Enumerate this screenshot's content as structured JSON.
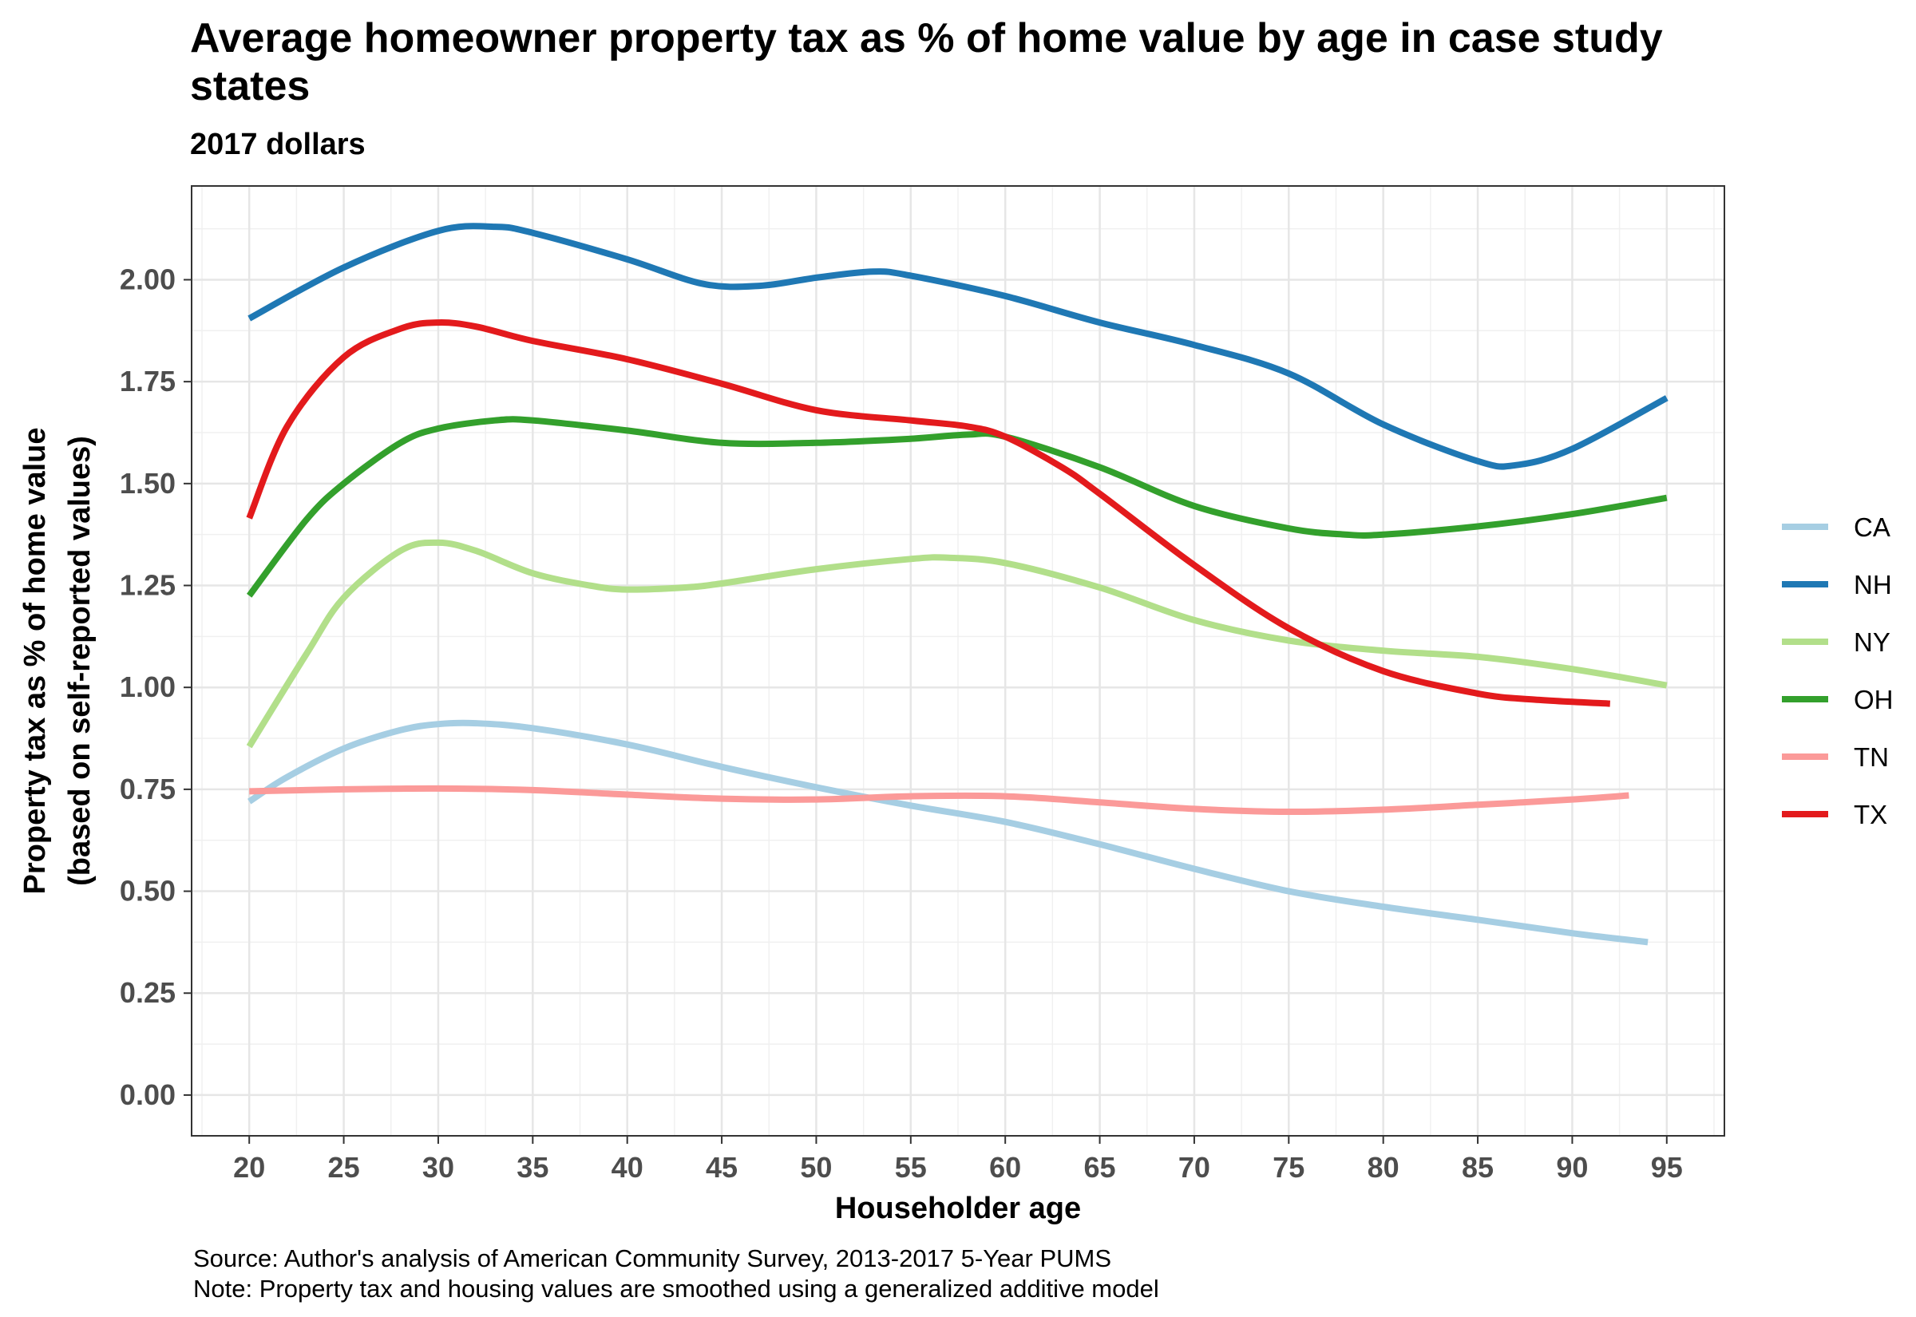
{
  "chart_data": {
    "type": "line",
    "title": "Average homeowner property tax as % of home value by age in case study states",
    "subtitle": "2017 dollars",
    "xlabel": "Householder age",
    "ylabel_line1": "Property tax as % of home value",
    "ylabel_line2": "(based on self-reported values)",
    "caption_source": "Source: Author's analysis of American Community Survey, 2013-2017 5-Year PUMS",
    "caption_note": "Note: Property tax and housing values are smoothed using a generalized additive model",
    "xlim": [
      16.95,
      98.05
    ],
    "ylim": [
      -0.1,
      2.23
    ],
    "x_ticks": [
      20,
      25,
      30,
      35,
      40,
      45,
      50,
      55,
      60,
      65,
      70,
      75,
      80,
      85,
      90,
      95
    ],
    "y_ticks": [
      0.0,
      0.25,
      0.5,
      0.75,
      1.0,
      1.25,
      1.5,
      1.75,
      2.0
    ],
    "y_tick_labels": [
      "0.00",
      "0.25",
      "0.50",
      "0.75",
      "1.00",
      "1.25",
      "1.50",
      "1.75",
      "2.00"
    ],
    "grid": true,
    "legend_position": "right",
    "series": [
      {
        "name": "CA",
        "color": "#a6cee3",
        "x": [
          20,
          22,
          25,
          28,
          30,
          32,
          35,
          40,
          45,
          50,
          55,
          60,
          65,
          70,
          75,
          80,
          85,
          90,
          94
        ],
        "y": [
          0.72,
          0.78,
          0.85,
          0.895,
          0.91,
          0.912,
          0.9,
          0.86,
          0.805,
          0.755,
          0.71,
          0.67,
          0.615,
          0.555,
          0.5,
          0.462,
          0.43,
          0.397,
          0.375
        ]
      },
      {
        "name": "NH",
        "color": "#1f78b4",
        "x": [
          20,
          25,
          30,
          33,
          35,
          40,
          44,
          47,
          50,
          53,
          55,
          60,
          65,
          70,
          75,
          80,
          85,
          87,
          90,
          95
        ],
        "y": [
          1.905,
          2.03,
          2.12,
          2.13,
          2.115,
          2.05,
          1.99,
          1.985,
          2.005,
          2.02,
          2.01,
          1.96,
          1.895,
          1.84,
          1.77,
          1.645,
          1.555,
          1.545,
          1.585,
          1.71
        ]
      },
      {
        "name": "NY",
        "color": "#b2df8a",
        "x": [
          20,
          23,
          25,
          28,
          30,
          32,
          35,
          38,
          40,
          43,
          45,
          50,
          55,
          57,
          60,
          65,
          70,
          75,
          80,
          85,
          90,
          95
        ],
        "y": [
          0.855,
          1.08,
          1.22,
          1.335,
          1.355,
          1.335,
          1.28,
          1.25,
          1.24,
          1.245,
          1.255,
          1.29,
          1.315,
          1.318,
          1.305,
          1.245,
          1.165,
          1.115,
          1.09,
          1.075,
          1.045,
          1.005
        ]
      },
      {
        "name": "OH",
        "color": "#33a02c",
        "x": [
          20,
          23,
          25,
          28,
          30,
          33,
          35,
          40,
          45,
          50,
          55,
          58,
          60,
          65,
          70,
          75,
          78,
          80,
          85,
          90,
          95
        ],
        "y": [
          1.225,
          1.41,
          1.5,
          1.6,
          1.635,
          1.655,
          1.655,
          1.63,
          1.6,
          1.6,
          1.61,
          1.62,
          1.615,
          1.54,
          1.445,
          1.39,
          1.375,
          1.375,
          1.395,
          1.425,
          1.465
        ]
      },
      {
        "name": "TN",
        "color": "#fb9a99",
        "x": [
          20,
          25,
          30,
          35,
          40,
          45,
          50,
          55,
          60,
          65,
          70,
          75,
          80,
          85,
          90,
          93
        ],
        "y": [
          0.745,
          0.75,
          0.752,
          0.748,
          0.737,
          0.727,
          0.725,
          0.733,
          0.733,
          0.718,
          0.702,
          0.695,
          0.7,
          0.712,
          0.725,
          0.735
        ]
      },
      {
        "name": "TX",
        "color": "#e31a1c",
        "x": [
          20,
          22,
          25,
          28,
          30,
          32,
          35,
          40,
          45,
          50,
          55,
          58,
          60,
          63,
          65,
          70,
          75,
          80,
          85,
          88,
          92
        ],
        "y": [
          1.415,
          1.64,
          1.81,
          1.88,
          1.895,
          1.885,
          1.85,
          1.805,
          1.745,
          1.68,
          1.655,
          1.64,
          1.615,
          1.54,
          1.475,
          1.3,
          1.145,
          1.04,
          0.985,
          0.97,
          0.96
        ]
      }
    ]
  }
}
